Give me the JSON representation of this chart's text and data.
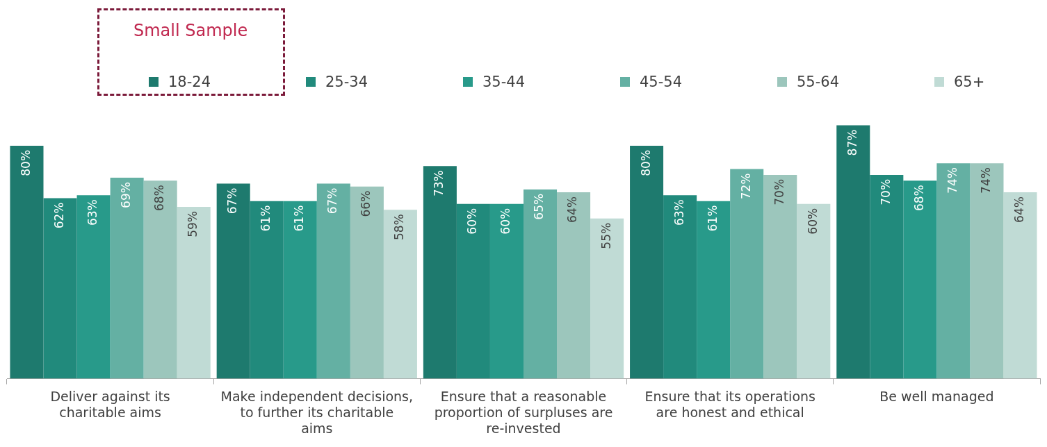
{
  "chart_data": {
    "type": "bar",
    "categories": [
      "Deliver against its charitable aims",
      "Make independent decisions, to further its charitable aims",
      "Ensure that a reasonable proportion of surpluses are re-invested",
      "Ensure that its operations are honest and ethical",
      "Be well managed"
    ],
    "series": [
      {
        "name": "18-24",
        "color": "#1e7a6e",
        "values": [
          80,
          67,
          73,
          80,
          87
        ],
        "value_labels": [
          "80%",
          "67%",
          "73%",
          "80%",
          "87%"
        ]
      },
      {
        "name": "25-34",
        "color": "#218a7c",
        "values": [
          62,
          61,
          60,
          63,
          70
        ],
        "value_labels": [
          "62%",
          "61%",
          "60%",
          "63%",
          "70%"
        ]
      },
      {
        "name": "35-44",
        "color": "#289a8a",
        "values": [
          63,
          61,
          60,
          61,
          68
        ],
        "value_labels": [
          "63%",
          "61%",
          "60%",
          "61%",
          "68%"
        ]
      },
      {
        "name": "45-54",
        "color": "#64b0a3",
        "values": [
          69,
          67,
          65,
          72,
          74
        ],
        "value_labels": [
          "69%",
          "67%",
          "65%",
          "72%",
          "74%"
        ]
      },
      {
        "name": "55-64",
        "color": "#9cc6bc",
        "values": [
          68,
          66,
          64,
          70,
          74
        ],
        "value_labels": [
          "68%",
          "66%",
          "64%",
          "70%",
          "74%"
        ]
      },
      {
        "name": "65+",
        "color": "#c0dbd5",
        "values": [
          59,
          58,
          55,
          60,
          64
        ],
        "value_labels": [
          "59%",
          "58%",
          "55%",
          "60%",
          "64%"
        ]
      }
    ],
    "tick_labels": "x",
    "grid": false,
    "legend": "top",
    "annotations": [
      "Small Sample"
    ]
  }
}
